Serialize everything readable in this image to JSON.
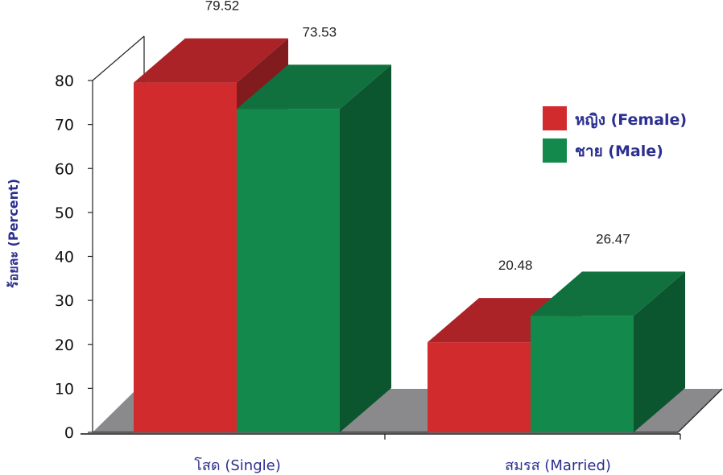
{
  "chart_data": {
    "type": "bar",
    "style": "3d-clustered",
    "categories": [
      "โสด (Single)",
      "สมรส (Married)"
    ],
    "series": [
      {
        "name": "หญิง (Female)",
        "values": [
          79.52,
          20.48
        ],
        "color": "#d12b2e",
        "labels": [
          "79.52",
          "20.48"
        ]
      },
      {
        "name": "ชาย (Male)",
        "values": [
          73.53,
          26.47
        ],
        "color": "#138a4c",
        "labels": [
          "73.53",
          "26.47"
        ]
      }
    ],
    "ylabel": "ร้อยละ (Percent)",
    "ylim": [
      0,
      80
    ],
    "yticks": [
      "0",
      "10",
      "20",
      "30",
      "40",
      "50",
      "60",
      "70",
      "80"
    ],
    "legend": "right",
    "grid": false,
    "colors": {
      "floor": "#8a8a8c",
      "axis": "#111111"
    }
  }
}
